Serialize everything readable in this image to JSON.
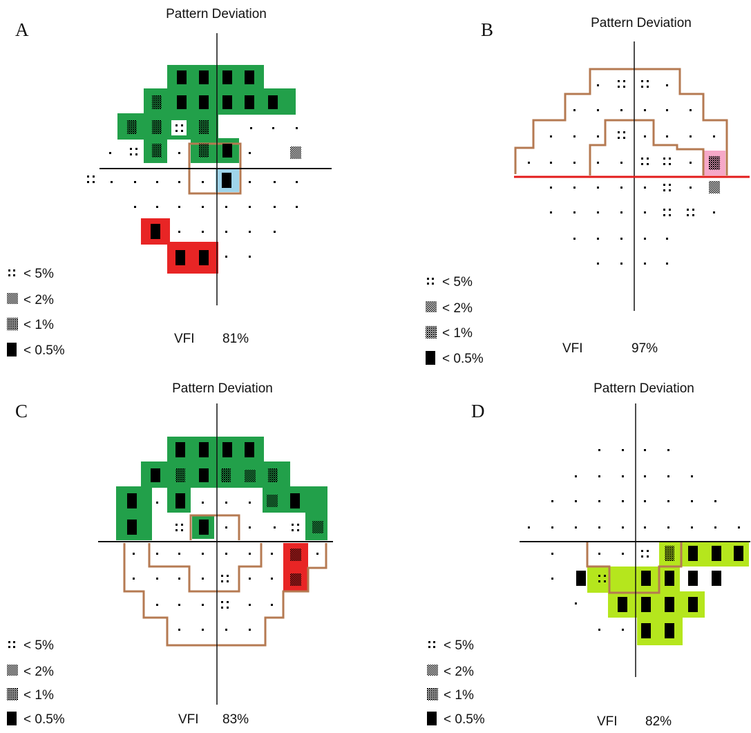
{
  "panels": [
    {
      "letter": "A",
      "title": "Pattern Deviation",
      "vfi_label": "VFI",
      "vfi_value": "81%",
      "highlight_colors": {
        "green": "#22a04a",
        "red": "#e82525",
        "blue": "#9fd4ea"
      },
      "outline_color": "#b57a52",
      "rows": [
        "....BBBB....",
        "...XBBBBB...",
        "..XXPX......",
        "..PX.XB..S..",
        "..P....B....",
        "...........",
        "....B.......",
        ".....BB....."
      ]
    },
    {
      "letter": "B",
      "title": "Pattern Deviation",
      "vfi_label": "VFI",
      "vfi_value": "97%",
      "highlight_colors": {
        "pink": "#f6a8c8"
      },
      "outline_color": "#b57a52",
      "midline_color": "#e31b1b",
      "rows": [
        "...PP.",
        "..........",
        "....P.....",
        ".....PP..X",
        ".....P..S",
        "....PP.",
        "......",
        "....."
      ]
    },
    {
      "letter": "C",
      "title": "Pattern Deviation",
      "vfi_label": "VFI",
      "vfi_value": "83%",
      "highlight_colors": {
        "green": "#22a04a",
        "red": "#e82525"
      },
      "outline_color": "#b57a52",
      "rows": [
        "BBBB",
        "BXBXSX",
        "B.B...SB",
        "B.PB....PS",
        "......S.",
        ".....P..S",
        "....P..",
        "...."
      ]
    },
    {
      "letter": "D",
      "title": "Pattern Deviation",
      "vfi_label": "VFI",
      "vfi_value": "82%",
      "highlight_colors": {
        "lime": "#b5e61d"
      },
      "outline_color": "#b57a52",
      "rows": [
        "....",
        "......",
        "........",
        "..........",
        "..PXBBB.",
        ".BPBBBB.",
        "BBBB",
        "BB"
      ]
    }
  ],
  "legend": [
    {
      "symbol": "dots-4",
      "label": "< 5%"
    },
    {
      "symbol": "checker",
      "label": "< 2%"
    },
    {
      "symbol": "dense",
      "label": "< 1%"
    },
    {
      "symbol": "solid",
      "label": "< 0.5%"
    }
  ]
}
